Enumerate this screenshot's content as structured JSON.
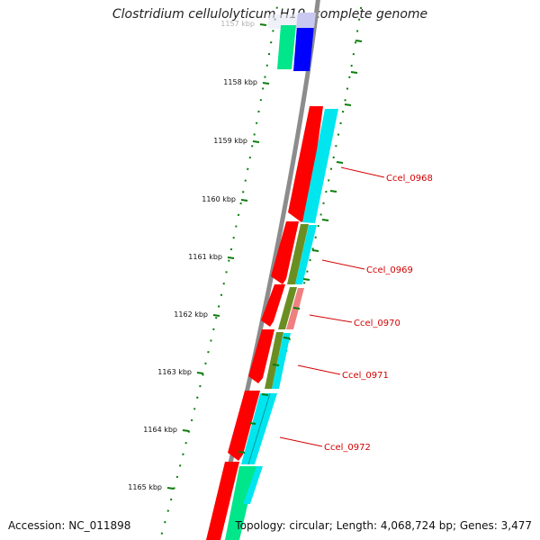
{
  "title": "Clostridium cellulolyticum H10, complete genome",
  "accession_text": "Accession: NC_011898",
  "summary_text": "Topology: circular; Length: 4,068,724 bp; Genes: 3,477",
  "ticks": [
    "1157 kbp",
    "1158 kbp",
    "1159 kbp",
    "1160 kbp",
    "1161 kbp",
    "1162 kbp",
    "1163 kbp",
    "1164 kbp",
    "1165 kbp"
  ],
  "gene_labels": [
    "Ccel_0968",
    "Ccel_0969",
    "Ccel_0970",
    "Ccel_0971",
    "Ccel_0972"
  ],
  "colors": {
    "backbone": "#8c8c8c",
    "cds_forward": "#ff0000",
    "match_cyan": "#00e5ee",
    "match_olive": "#6b8e23",
    "match_salmon": "#f08080",
    "match_green": "#00e68a",
    "match_blue": "#0000ff",
    "tick_green": "#0b7d0b",
    "label_red": "#d40000"
  }
}
